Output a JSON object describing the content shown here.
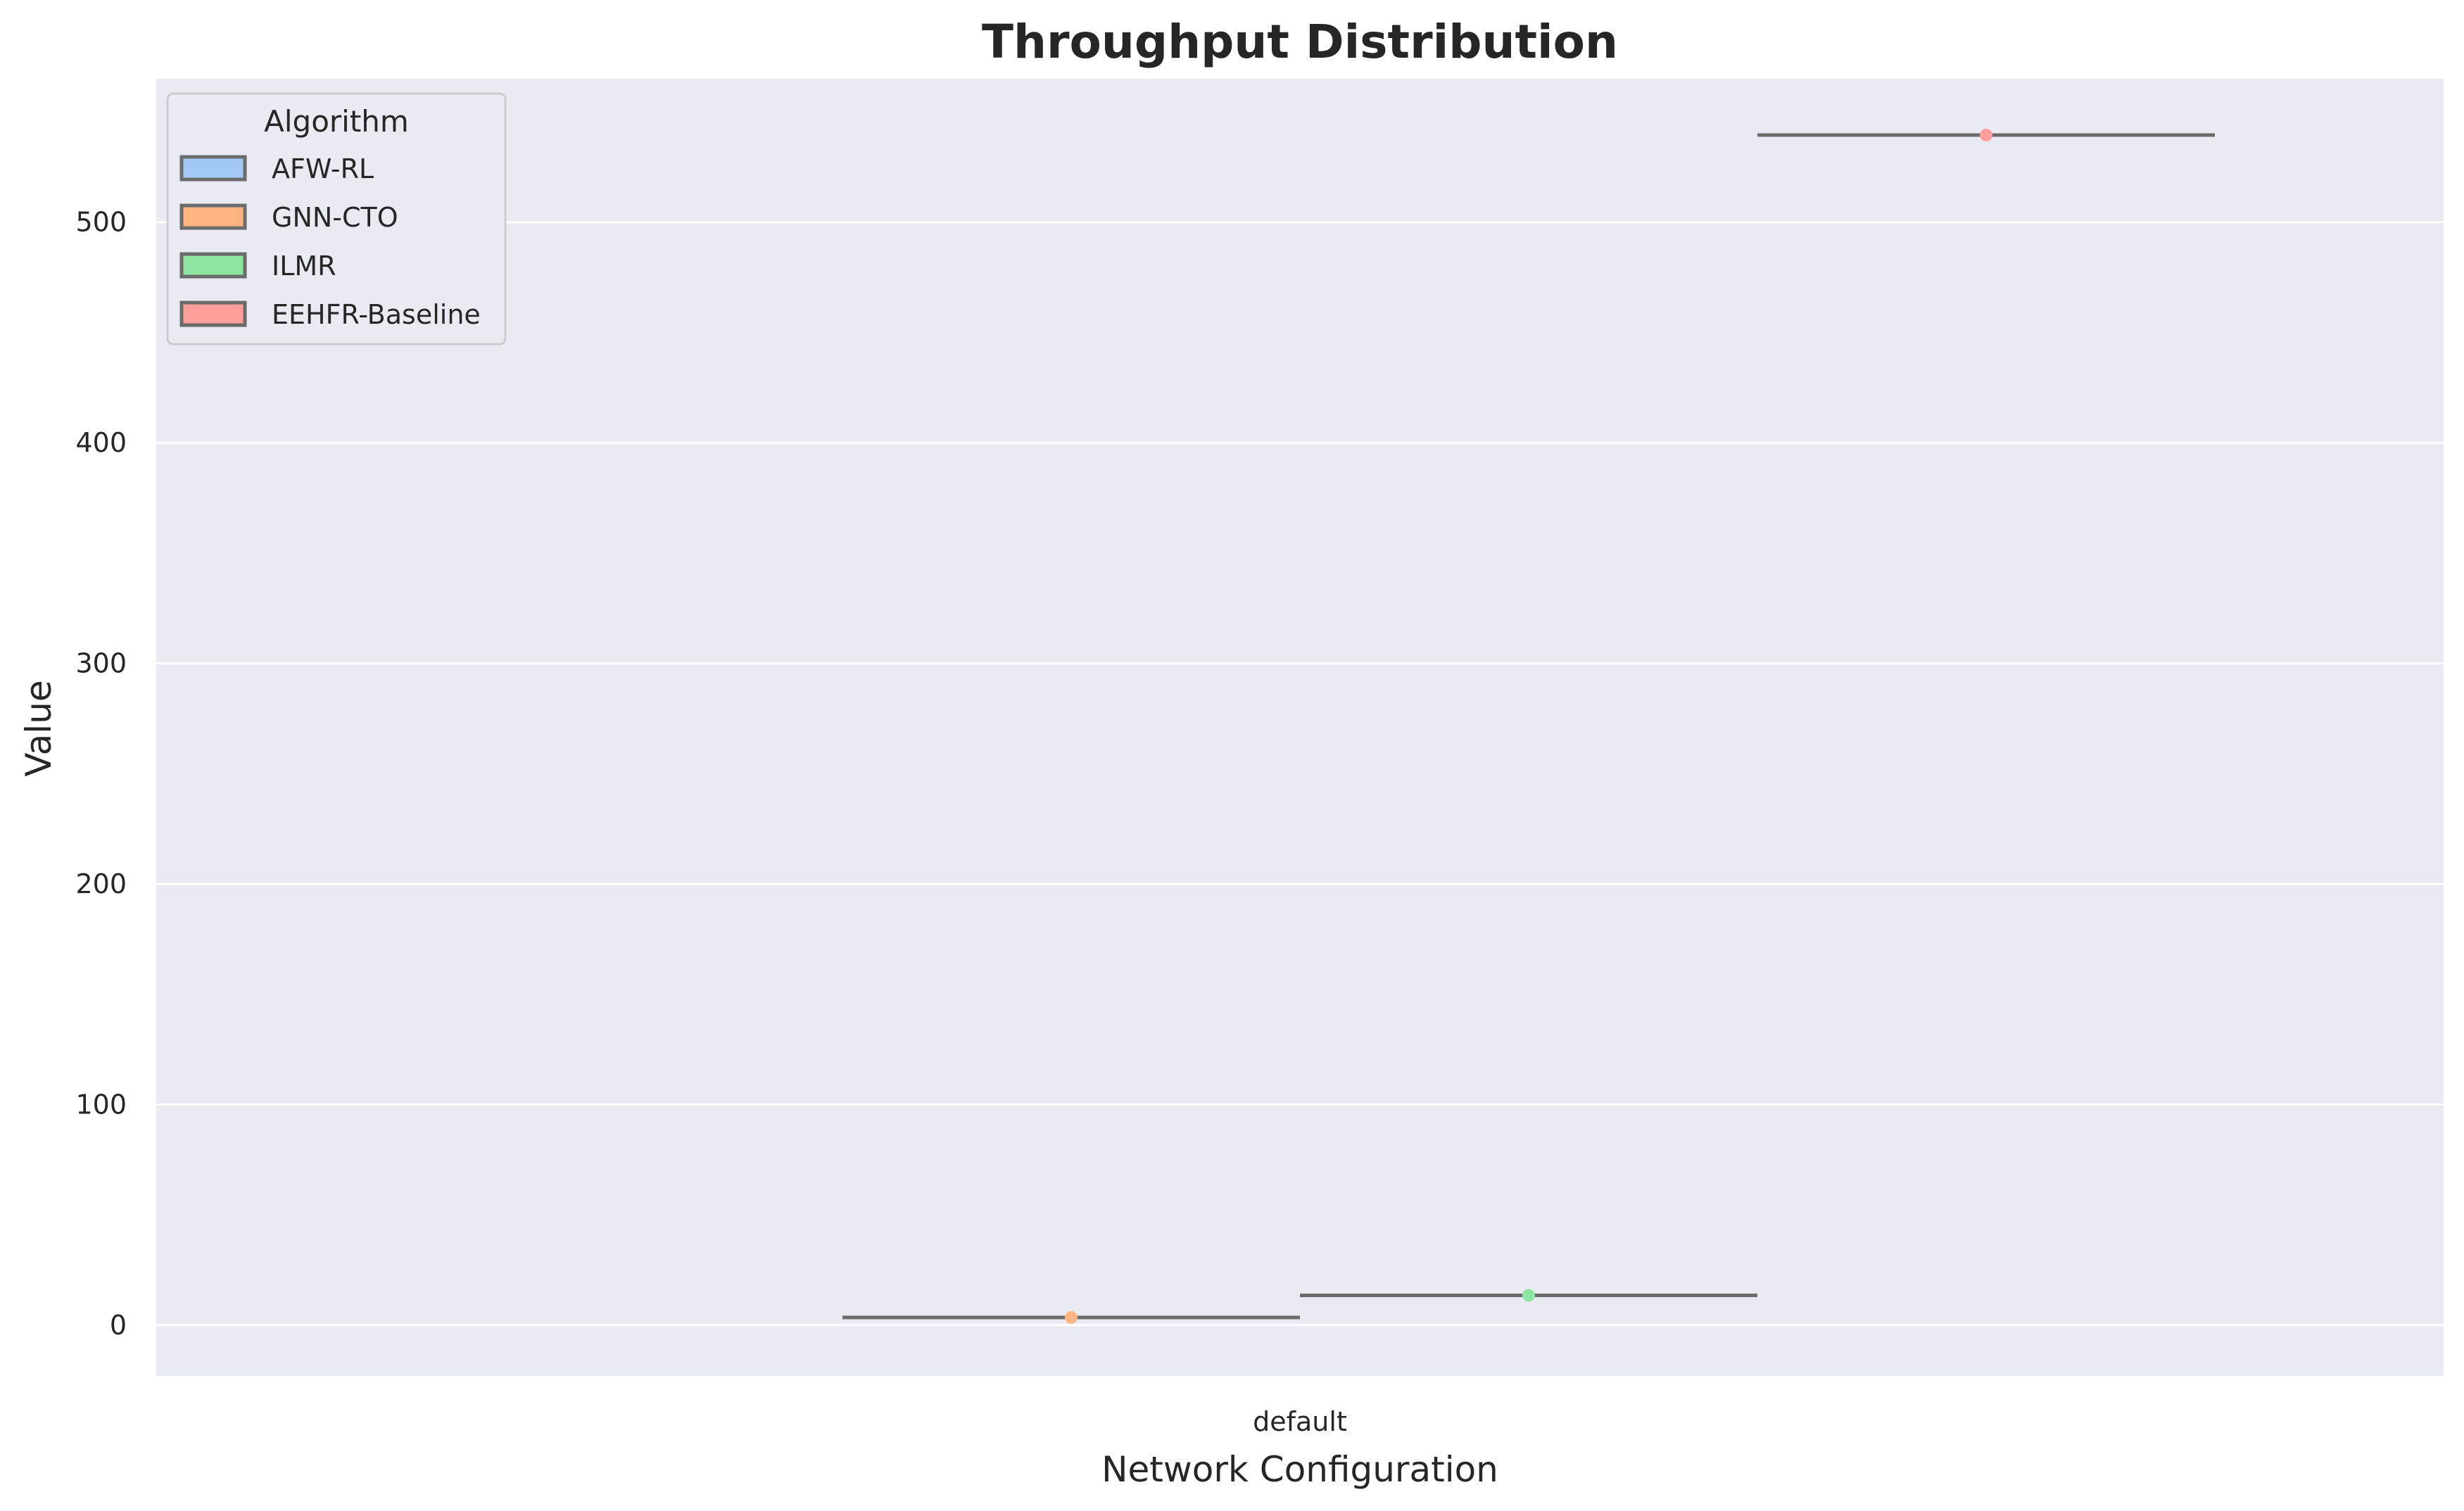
{
  "chart_data": {
    "type": "violin",
    "title": "Throughput Distribution",
    "xlabel": "Network Configuration",
    "ylabel": "Value",
    "categories": [
      "default"
    ],
    "hue_order": [
      "AFW-RL",
      "GNN-CTO",
      "ILMR",
      "EEHFR-Baseline"
    ],
    "series": [
      {
        "name": "AFW-RL",
        "color": "#a1c9f4",
        "values": []
      },
      {
        "name": "GNN-CTO",
        "color": "#ffb482",
        "values": [
          3.5
        ]
      },
      {
        "name": "ILMR",
        "color": "#8de5a1",
        "values": [
          13.5
        ]
      },
      {
        "name": "EEHFR-Baseline",
        "color": "#ff9f9b",
        "values": [
          539.5
        ]
      }
    ],
    "ylim": [
      -23,
      565
    ],
    "yticks": [
      0,
      100,
      200,
      300,
      400,
      500
    ],
    "grid": true,
    "legend": {
      "title": "Algorithm",
      "position": "upper left"
    },
    "colors": {
      "background": "#eaeaf2",
      "grid": "#ffffff",
      "median_line": "#6b6b6b"
    }
  }
}
